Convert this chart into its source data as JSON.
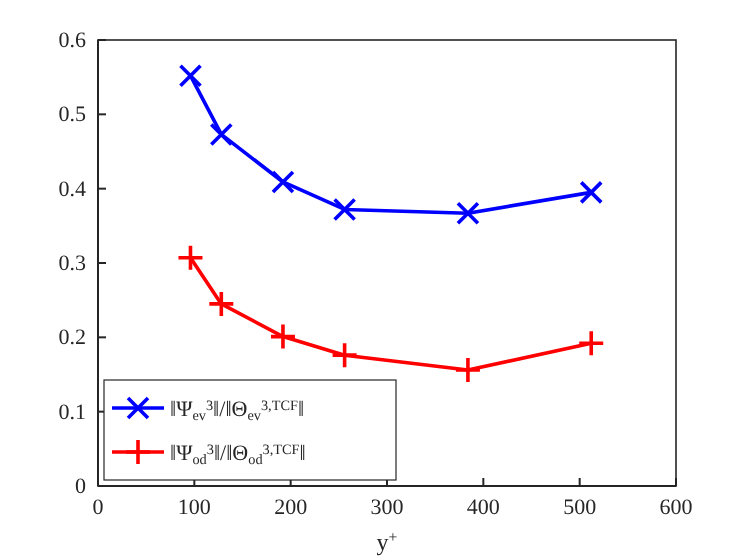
{
  "chart_data": {
    "type": "line",
    "xlabel": "y$^{+}$",
    "x": [
      96,
      128,
      192,
      256,
      384,
      512
    ],
    "series": [
      {
        "name": "‖Ψ$_{ev}$$^{3}$‖/‖Θ$_{ev}$$^{3,TCF}$‖",
        "color": "#0000ff",
        "marker": "cross",
        "values": [
          0.552,
          0.473,
          0.409,
          0.372,
          0.367,
          0.395
        ]
      },
      {
        "name": "‖Ψ$_{od}$$^{3}$‖/‖Θ$_{od}$$^{3,TCF}$‖",
        "color": "#ff0000",
        "marker": "plus",
        "values": [
          0.307,
          0.245,
          0.201,
          0.176,
          0.156,
          0.192
        ]
      }
    ],
    "xlim": [
      0,
      600
    ],
    "xticks": [
      0,
      100,
      200,
      300,
      400,
      500,
      600
    ],
    "ylim": [
      0,
      0.6
    ],
    "yticks": [
      0,
      0.1,
      0.2,
      0.3,
      0.4,
      0.5,
      0.6
    ],
    "grid": false,
    "legend": "bottom left",
    "line_style": "solid"
  }
}
